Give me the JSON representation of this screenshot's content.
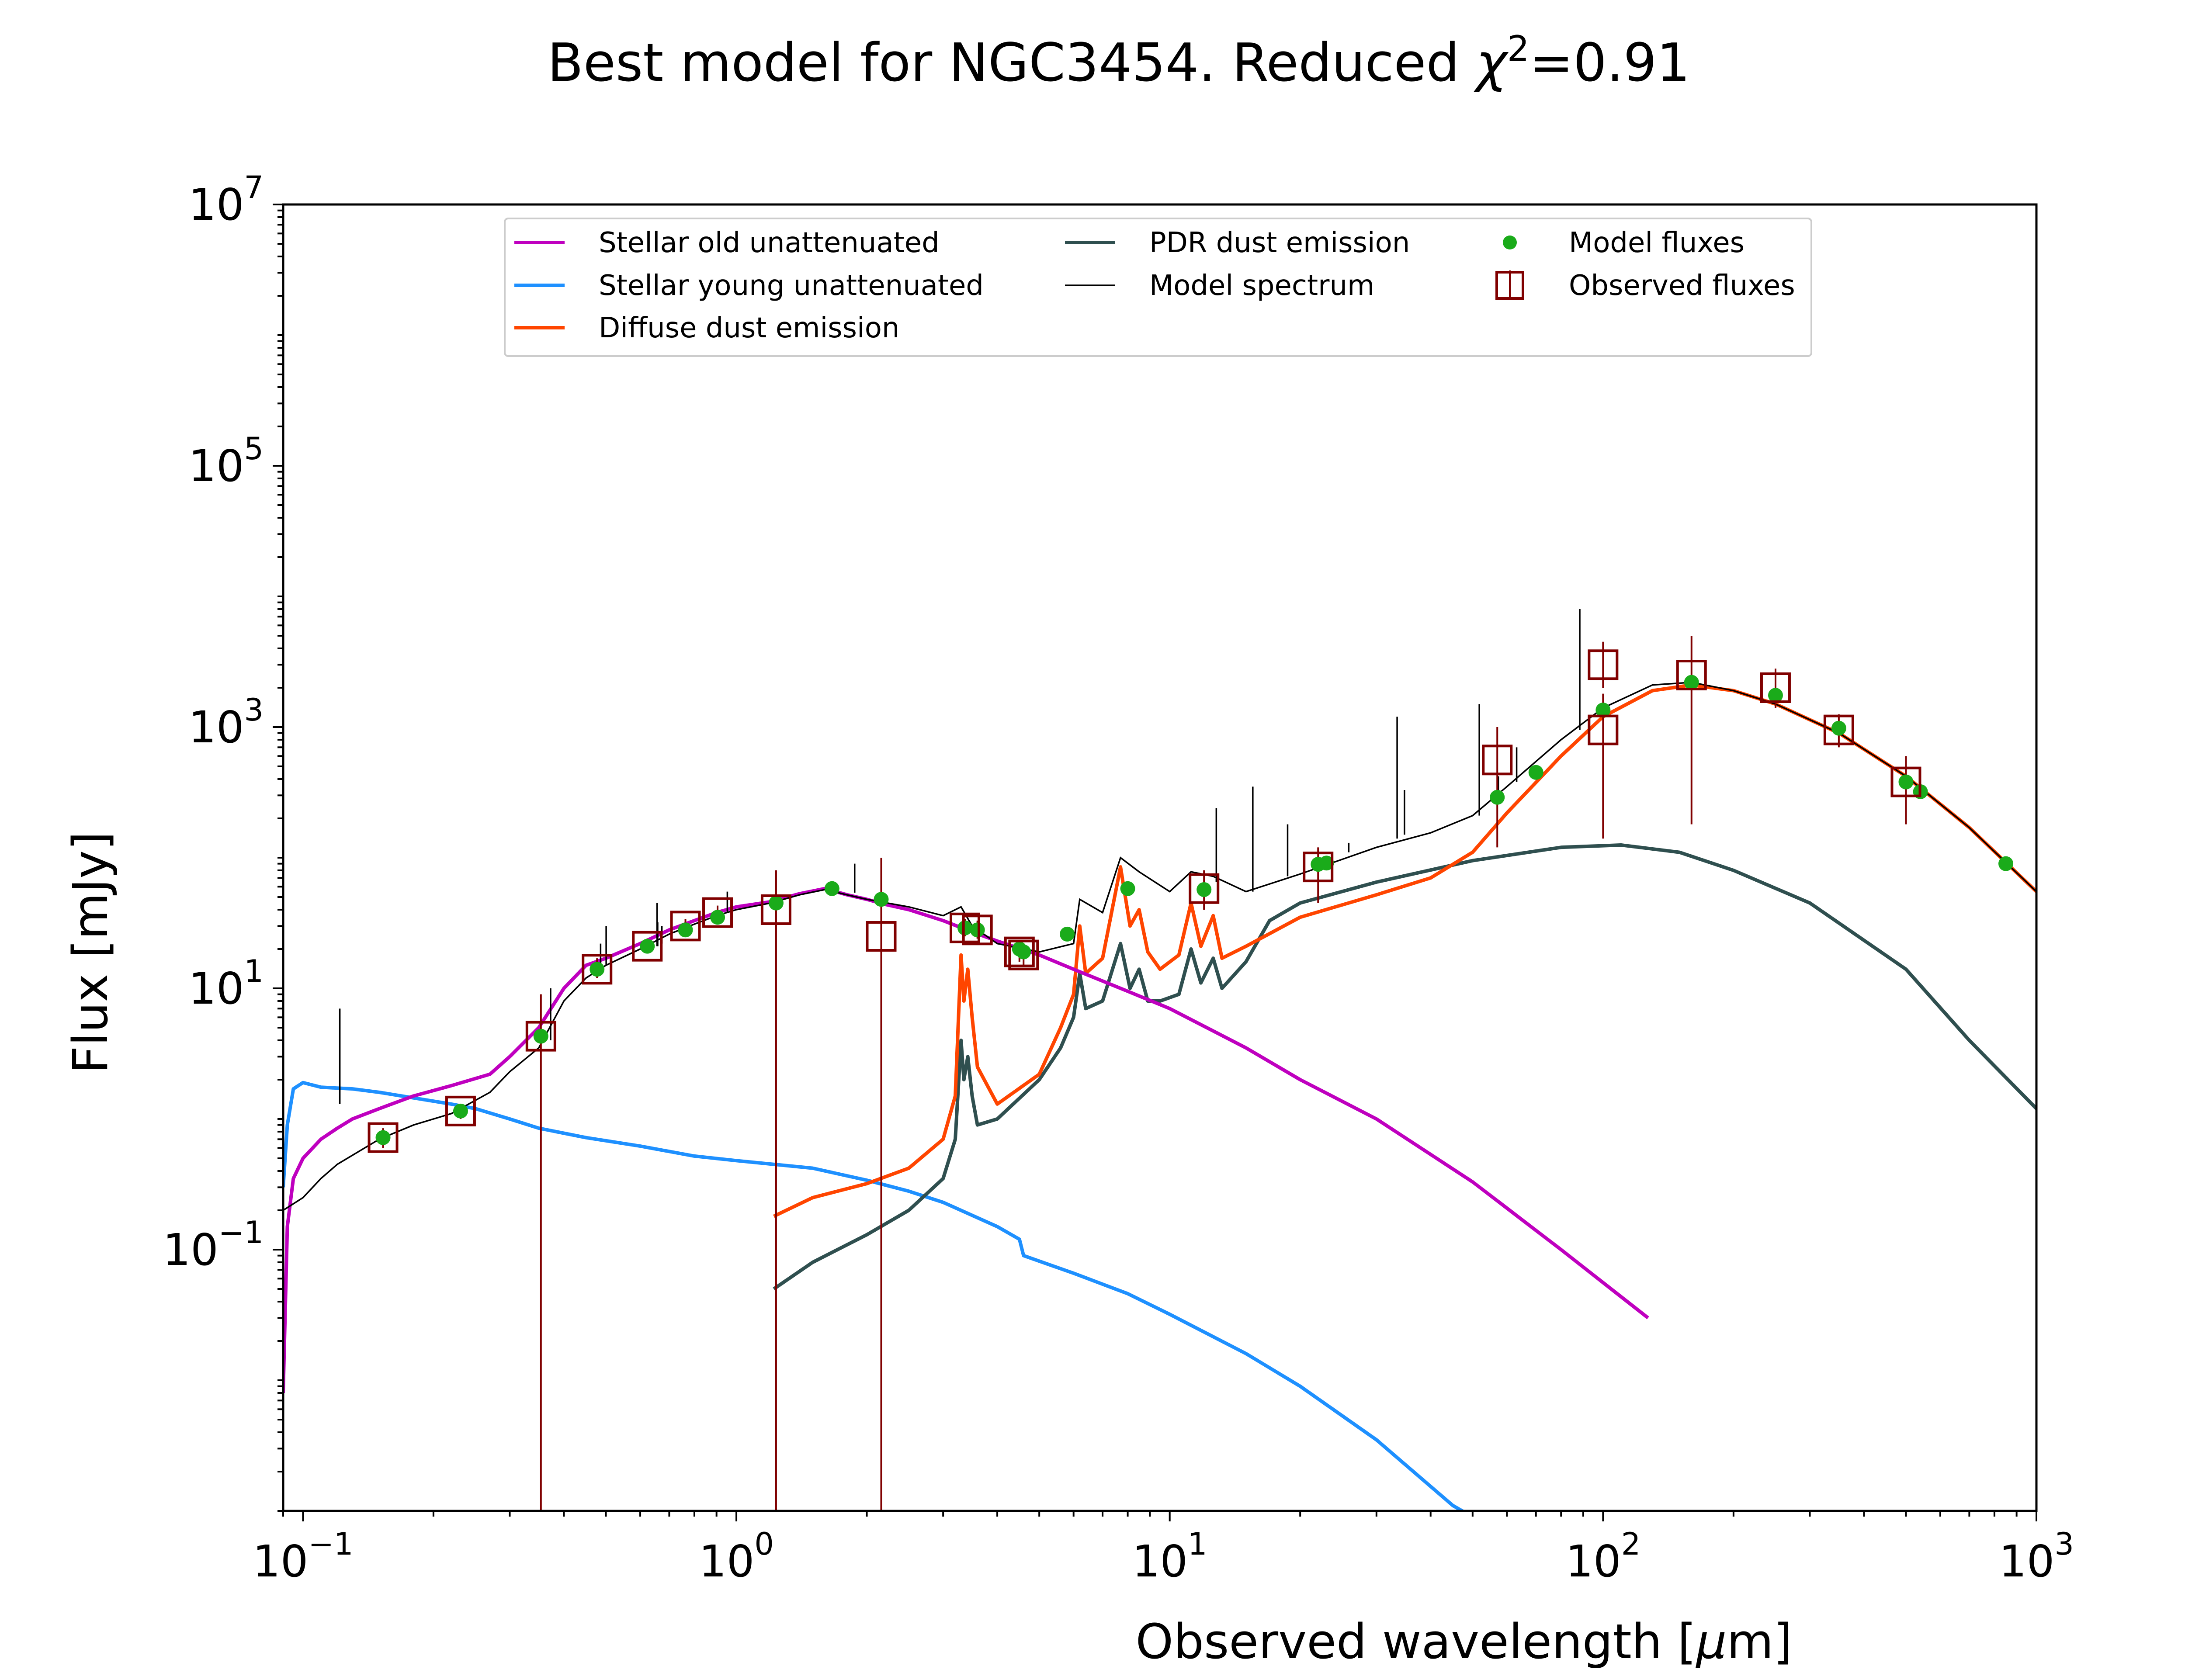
{
  "chart_data": {
    "type": "line",
    "title": "Best model for NGC3454. Reduced χ²=0.91",
    "title_parts": {
      "prefix": "Best model for NGC3454. Reduced ",
      "symbol": "χ",
      "sup": "2",
      "suffix": "=0.91"
    },
    "xlabel": "Observed wavelength [μm]",
    "xlabel_parts": {
      "prefix": "Observed wavelength [",
      "symbol": "μ",
      "suffix": "m]"
    },
    "ylabel": "Flux [mJy]",
    "x_scale": "log",
    "y_scale": "log",
    "xlim": [
      0.09,
      1000
    ],
    "ylim": [
      0.001,
      10000000
    ],
    "x_ticks": [
      {
        "value": 0.1,
        "base": "10",
        "exp": "−1"
      },
      {
        "value": 1,
        "base": "10",
        "exp": "0"
      },
      {
        "value": 10,
        "base": "10",
        "exp": "1"
      },
      {
        "value": 100,
        "base": "10",
        "exp": "2"
      },
      {
        "value": 1000,
        "base": "10",
        "exp": "3"
      }
    ],
    "y_ticks": [
      {
        "value": 0.1,
        "base": "10",
        "exp": "−1"
      },
      {
        "value": 10,
        "base": "10",
        "exp": "1"
      },
      {
        "value": 1000,
        "base": "10",
        "exp": "3"
      },
      {
        "value": 100000,
        "base": "10",
        "exp": "5"
      },
      {
        "value": 10000000,
        "base": "10",
        "exp": "7"
      }
    ],
    "legend": {
      "placement": "upper-center",
      "columns": 3
    },
    "series": [
      {
        "name": "Stellar old unattenuated",
        "color": "#bf00bf",
        "kind": "line",
        "points": [
          [
            0.09,
            0.008
          ],
          [
            0.092,
            0.15
          ],
          [
            0.095,
            0.35
          ],
          [
            0.1,
            0.5
          ],
          [
            0.11,
            0.7
          ],
          [
            0.12,
            0.85
          ],
          [
            0.13,
            1.0
          ],
          [
            0.15,
            1.2
          ],
          [
            0.18,
            1.5
          ],
          [
            0.22,
            1.8
          ],
          [
            0.27,
            2.2
          ],
          [
            0.3,
            3.0
          ],
          [
            0.35,
            5.0
          ],
          [
            0.4,
            10
          ],
          [
            0.45,
            15
          ],
          [
            0.5,
            17
          ],
          [
            0.6,
            22
          ],
          [
            0.7,
            28
          ],
          [
            0.8,
            33
          ],
          [
            0.9,
            38
          ],
          [
            1.0,
            42
          ],
          [
            1.2,
            46
          ],
          [
            1.4,
            53
          ],
          [
            1.6,
            58
          ],
          [
            1.8,
            52
          ],
          [
            2.0,
            48
          ],
          [
            2.2,
            44
          ],
          [
            2.5,
            40
          ],
          [
            3.0,
            33
          ],
          [
            3.5,
            27
          ],
          [
            4.0,
            23
          ],
          [
            5.0,
            18
          ],
          [
            6.0,
            14
          ],
          [
            8.0,
            9.5
          ],
          [
            10,
            7.0
          ],
          [
            15,
            3.5
          ],
          [
            20,
            2.0
          ],
          [
            30,
            1.0
          ],
          [
            50,
            0.33
          ],
          [
            80,
            0.1
          ],
          [
            127,
            0.03
          ]
        ]
      },
      {
        "name": "Stellar young unattenuated",
        "color": "#1e90ff",
        "kind": "line",
        "points": [
          [
            0.09,
            0.3
          ],
          [
            0.092,
            0.9
          ],
          [
            0.095,
            1.7
          ],
          [
            0.1,
            1.9
          ],
          [
            0.11,
            1.75
          ],
          [
            0.13,
            1.7
          ],
          [
            0.15,
            1.6
          ],
          [
            0.18,
            1.45
          ],
          [
            0.22,
            1.3
          ],
          [
            0.25,
            1.2
          ],
          [
            0.3,
            1.0
          ],
          [
            0.35,
            0.85
          ],
          [
            0.45,
            0.72
          ],
          [
            0.6,
            0.62
          ],
          [
            0.8,
            0.52
          ],
          [
            1.0,
            0.48
          ],
          [
            1.5,
            0.42
          ],
          [
            2.0,
            0.34
          ],
          [
            2.5,
            0.28
          ],
          [
            3.0,
            0.23
          ],
          [
            4.0,
            0.15
          ],
          [
            4.5,
            0.12
          ],
          [
            4.6,
            0.09
          ],
          [
            6.0,
            0.066
          ],
          [
            8.0,
            0.046
          ],
          [
            10,
            0.032
          ],
          [
            15,
            0.016
          ],
          [
            20,
            0.009
          ],
          [
            30,
            0.0035
          ],
          [
            45,
            0.0011
          ],
          [
            50,
            0.0009
          ]
        ]
      },
      {
        "name": "Diffuse dust emission",
        "color": "#ff4500",
        "kind": "line",
        "points": [
          [
            1.22,
            0.18
          ],
          [
            1.5,
            0.25
          ],
          [
            2.0,
            0.32
          ],
          [
            2.5,
            0.42
          ],
          [
            3.0,
            0.7
          ],
          [
            3.2,
            1.5
          ],
          [
            3.3,
            18
          ],
          [
            3.35,
            8
          ],
          [
            3.42,
            14
          ],
          [
            3.5,
            6
          ],
          [
            3.6,
            2.5
          ],
          [
            4.0,
            1.3
          ],
          [
            5.0,
            2.2
          ],
          [
            5.6,
            5
          ],
          [
            6.0,
            9
          ],
          [
            6.2,
            30
          ],
          [
            6.4,
            13
          ],
          [
            7.0,
            17
          ],
          [
            7.7,
            85
          ],
          [
            8.1,
            30
          ],
          [
            8.5,
            40
          ],
          [
            8.9,
            19
          ],
          [
            9.5,
            14
          ],
          [
            10.5,
            18
          ],
          [
            11.2,
            45
          ],
          [
            11.8,
            21
          ],
          [
            12.6,
            36
          ],
          [
            13.2,
            17
          ],
          [
            15,
            21
          ],
          [
            20,
            35
          ],
          [
            30,
            52
          ],
          [
            40,
            70
          ],
          [
            50,
            110
          ],
          [
            60,
            220
          ],
          [
            80,
            600
          ],
          [
            100,
            1200
          ],
          [
            130,
            1900
          ],
          [
            160,
            2100
          ],
          [
            200,
            1900
          ],
          [
            250,
            1500
          ],
          [
            350,
            900
          ],
          [
            500,
            420
          ],
          [
            700,
            170
          ],
          [
            1000,
            55
          ]
        ]
      },
      {
        "name": "PDR dust emission",
        "color": "#2f4f4f",
        "kind": "line",
        "points": [
          [
            1.22,
            0.05
          ],
          [
            1.5,
            0.08
          ],
          [
            2.0,
            0.13
          ],
          [
            2.5,
            0.2
          ],
          [
            3.0,
            0.35
          ],
          [
            3.2,
            0.7
          ],
          [
            3.3,
            4
          ],
          [
            3.35,
            2
          ],
          [
            3.42,
            3
          ],
          [
            3.5,
            1.5
          ],
          [
            3.6,
            0.9
          ],
          [
            4.0,
            1.0
          ],
          [
            5.0,
            2.0
          ],
          [
            5.6,
            3.5
          ],
          [
            6.0,
            6
          ],
          [
            6.2,
            13
          ],
          [
            6.4,
            7
          ],
          [
            7.0,
            8
          ],
          [
            7.7,
            22
          ],
          [
            8.1,
            10
          ],
          [
            8.5,
            14
          ],
          [
            8.9,
            8
          ],
          [
            9.5,
            8
          ],
          [
            10.5,
            9
          ],
          [
            11.2,
            20
          ],
          [
            11.8,
            11
          ],
          [
            12.6,
            17
          ],
          [
            13.2,
            10
          ],
          [
            15,
            16
          ],
          [
            17,
            33
          ],
          [
            20,
            45
          ],
          [
            30,
            65
          ],
          [
            50,
            95
          ],
          [
            80,
            120
          ],
          [
            110,
            125
          ],
          [
            150,
            110
          ],
          [
            200,
            80
          ],
          [
            300,
            45
          ],
          [
            500,
            14
          ],
          [
            700,
            4
          ],
          [
            1000,
            1.2
          ]
        ]
      },
      {
        "name": "Model spectrum",
        "color": "#000000",
        "kind": "thin-line",
        "points": [
          [
            0.09,
            0.2
          ],
          [
            0.1,
            0.25
          ],
          [
            0.11,
            0.35
          ],
          [
            0.12,
            0.45
          ],
          [
            0.15,
            0.7
          ],
          [
            0.18,
            0.9
          ],
          [
            0.22,
            1.1
          ],
          [
            0.27,
            1.6
          ],
          [
            0.3,
            2.3
          ],
          [
            0.35,
            3.5
          ],
          [
            0.4,
            8
          ],
          [
            0.45,
            12
          ],
          [
            0.5,
            15
          ],
          [
            0.6,
            20
          ],
          [
            0.7,
            26
          ],
          [
            0.8,
            31
          ],
          [
            0.9,
            36
          ],
          [
            1.0,
            40
          ],
          [
            1.2,
            45
          ],
          [
            1.4,
            52
          ],
          [
            1.6,
            57
          ],
          [
            1.8,
            52
          ],
          [
            2.0,
            48
          ],
          [
            2.5,
            42
          ],
          [
            3.0,
            36
          ],
          [
            3.3,
            42
          ],
          [
            3.5,
            30
          ],
          [
            4.0,
            22
          ],
          [
            5.0,
            19
          ],
          [
            6.0,
            22
          ],
          [
            6.2,
            48
          ],
          [
            7.0,
            38
          ],
          [
            7.7,
            100
          ],
          [
            8.5,
            78
          ],
          [
            10,
            55
          ],
          [
            11.2,
            78
          ],
          [
            12.6,
            72
          ],
          [
            15,
            55
          ],
          [
            20,
            75
          ],
          [
            30,
            120
          ],
          [
            40,
            155
          ],
          [
            50,
            210
          ],
          [
            60,
            350
          ],
          [
            80,
            800
          ],
          [
            100,
            1400
          ],
          [
            130,
            2100
          ],
          [
            160,
            2200
          ],
          [
            200,
            1900
          ],
          [
            250,
            1500
          ],
          [
            350,
            900
          ],
          [
            500,
            420
          ],
          [
            700,
            170
          ],
          [
            1000,
            55
          ]
        ]
      },
      {
        "name": "Model fluxes",
        "color": "#1aab1a",
        "kind": "points",
        "points": [
          [
            0.153,
            0.72
          ],
          [
            0.231,
            1.15
          ],
          [
            0.354,
            4.3
          ],
          [
            0.477,
            14
          ],
          [
            0.623,
            21
          ],
          [
            0.763,
            28
          ],
          [
            0.905,
            35
          ],
          [
            1.235,
            45
          ],
          [
            1.662,
            58
          ],
          [
            2.159,
            48
          ],
          [
            3.368,
            29
          ],
          [
            3.6,
            28
          ],
          [
            4.5,
            20
          ],
          [
            4.6,
            19
          ],
          [
            5.8,
            26
          ],
          [
            8.0,
            58
          ],
          [
            12.0,
            57
          ],
          [
            22.0,
            89
          ],
          [
            23.0,
            91
          ],
          [
            57.0,
            290
          ],
          [
            70.0,
            450
          ],
          [
            100.0,
            1350
          ],
          [
            160.0,
            2200
          ],
          [
            250.0,
            1750
          ],
          [
            350.0,
            980
          ],
          [
            500.0,
            380
          ],
          [
            540.0,
            320
          ],
          [
            850.0,
            90
          ]
        ]
      },
      {
        "name": "Observed fluxes",
        "color": "#800000",
        "kind": "errorbar-squares",
        "points": [
          {
            "x": 0.153,
            "y": 0.72,
            "lo": 0.6,
            "hi": 0.85
          },
          {
            "x": 0.231,
            "y": 1.15,
            "lo": 1.0,
            "hi": 1.3
          },
          {
            "x": 0.354,
            "y": 4.3,
            "lo": 0.001,
            "hi": 9.0
          },
          {
            "x": 0.477,
            "y": 14,
            "lo": 12,
            "hi": 17
          },
          {
            "x": 0.623,
            "y": 21,
            "lo": 19,
            "hi": 24
          },
          {
            "x": 0.763,
            "y": 30,
            "lo": 27,
            "hi": 34
          },
          {
            "x": 0.905,
            "y": 38,
            "lo": 34,
            "hi": 43
          },
          {
            "x": 1.235,
            "y": 40,
            "lo": 0.001,
            "hi": 80
          },
          {
            "x": 2.159,
            "y": 25,
            "lo": 0.001,
            "hi": 100
          },
          {
            "x": 3.368,
            "y": 29,
            "lo": 25,
            "hi": 34
          },
          {
            "x": 3.6,
            "y": 28,
            "lo": 24,
            "hi": 33
          },
          {
            "x": 4.5,
            "y": 19,
            "lo": 16,
            "hi": 23
          },
          {
            "x": 4.6,
            "y": 18,
            "lo": 15,
            "hi": 22
          },
          {
            "x": 12.0,
            "y": 58,
            "lo": 40,
            "hi": 80
          },
          {
            "x": 22.0,
            "y": 85,
            "lo": 45,
            "hi": 120
          },
          {
            "x": 57.0,
            "y": 560,
            "lo": 120,
            "hi": 1000
          },
          {
            "x": 100.0,
            "y": 3000,
            "lo": 2000,
            "hi": 4500
          },
          {
            "x": 100.0,
            "y": 950,
            "lo": 140,
            "hi": 1800
          },
          {
            "x": 160.0,
            "y": 2500,
            "lo": 180,
            "hi": 5000
          },
          {
            "x": 250.0,
            "y": 2000,
            "lo": 1400,
            "hi": 2800
          },
          {
            "x": 350.0,
            "y": 950,
            "lo": 700,
            "hi": 1250
          },
          {
            "x": 500.0,
            "y": 380,
            "lo": 180,
            "hi": 600
          }
        ]
      }
    ],
    "emission_lines": [
      [
        0.1216,
        1.3,
        7
      ],
      [
        0.3727,
        4,
        10
      ],
      [
        0.4861,
        13,
        22
      ],
      [
        0.5007,
        15,
        30
      ],
      [
        0.6563,
        21,
        45
      ],
      [
        0.6583,
        21,
        32
      ],
      [
        0.6731,
        22,
        30
      ],
      [
        0.9532,
        38,
        55
      ],
      [
        1.875,
        54,
        90
      ],
      [
        12.81,
        65,
        240
      ],
      [
        15.55,
        55,
        350
      ],
      [
        18.71,
        72,
        180
      ],
      [
        25.89,
        110,
        130
      ],
      [
        33.48,
        140,
        1200
      ],
      [
        34.81,
        150,
        330
      ],
      [
        51.81,
        210,
        1500
      ],
      [
        57.32,
        280,
        420
      ],
      [
        63.18,
        380,
        700
      ],
      [
        88.36,
        950,
        8000
      ]
    ]
  }
}
